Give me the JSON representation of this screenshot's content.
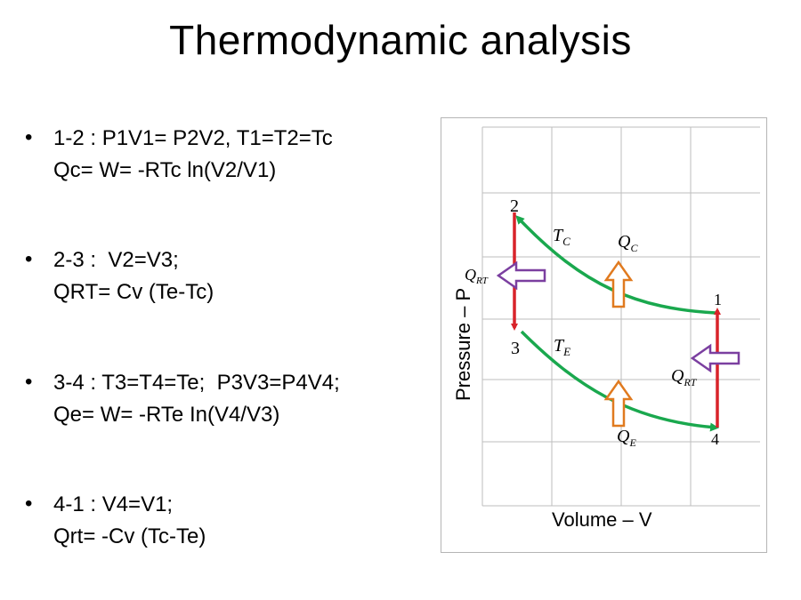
{
  "slide": {
    "title": "Thermodynamic analysis"
  },
  "bullets": [
    {
      "line1": "1-2 : P1V1= P2V2, T1=T2=Tc",
      "line2": "Qc= W= -RTc ln(V2/V1)"
    },
    {
      "line1": "2-3 :  V2=V3;",
      "line2": "QRT= Cv (Te-Tc)"
    },
    {
      "line1": "3-4 : T3=T4=Te;  P3V3=P4V4;",
      "line2": "Qe= W= -RTe In(V4/V3)"
    },
    {
      "line1": "4-1 : V4=V1;",
      "line2": "Qrt= -Cv (Tc-Te)"
    }
  ],
  "bullet_glyph": "•",
  "diagram": {
    "x_axis_label": "Volume – V",
    "y_axis_label": "Pressure – P",
    "points": [
      "1",
      "2",
      "3",
      "4"
    ],
    "isotherm_labels": {
      "upper": {
        "main": "T",
        "sub": "C"
      },
      "lower": {
        "main": "T",
        "sub": "E"
      }
    },
    "heat_labels": {
      "compression": {
        "main": "Q",
        "sub": "C"
      },
      "expansion": {
        "main": "Q",
        "sub": "E"
      },
      "regen_left": {
        "main": "Q",
        "sub": "RT"
      },
      "regen_right": {
        "main": "Q",
        "sub": "RT"
      }
    },
    "colors": {
      "isotherm": "#1aa84e",
      "isochore": "#d8232a",
      "heat_arrow_vertical": "#e07a1f",
      "heat_arrow_horizontal": "#7b3fa0",
      "grid": "#bdbdbd"
    }
  }
}
